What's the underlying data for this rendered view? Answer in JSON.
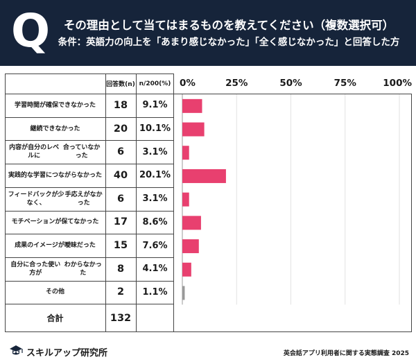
{
  "header": {
    "q_letter": "Q",
    "title": "その理由として当てはまるものを教えてください（複数選択可）",
    "subtitle": "条件：英語力の向上を「あまり感じなかった」「全く感じなかった」と回答した方"
  },
  "table": {
    "col_count": "回答数(n)",
    "col_pct": "n/200(%)",
    "rows": [
      {
        "label": [
          "学習時間が確保できなかった"
        ],
        "count": "18",
        "pct": "9.1%"
      },
      {
        "label": [
          "継続できなかった"
        ],
        "count": "20",
        "pct": "10.1%"
      },
      {
        "label": [
          "内容が自分のレベルに",
          "合っていなかった"
        ],
        "count": "6",
        "pct": "3.1%"
      },
      {
        "label": [
          "実践的な学習に",
          "つながらなかった"
        ],
        "count": "40",
        "pct": "20.1%"
      },
      {
        "label": [
          "フィードバックが少なく、",
          "手応えがなかった"
        ],
        "count": "6",
        "pct": "3.1%"
      },
      {
        "label": [
          "モチベーションが保てなかった"
        ],
        "count": "17",
        "pct": "8.6%"
      },
      {
        "label": [
          "成果のイメージが曖昧だった"
        ],
        "count": "15",
        "pct": "7.6%"
      },
      {
        "label": [
          "自分に合った使い方が",
          "わからなかった"
        ],
        "count": "8",
        "pct": "4.1%"
      },
      {
        "label": [
          "その他"
        ],
        "count": "2",
        "pct": "1.1%"
      }
    ],
    "total_label": "合計",
    "total_count": "132"
  },
  "chart_data": {
    "type": "bar",
    "orientation": "horizontal",
    "categories": [
      "学習時間が確保できなかった",
      "継続できなかった",
      "内容が自分のレベルに合っていなかった",
      "実践的な学習につながらなかった",
      "フィードバックが少なく、手応えがなかった",
      "モチベーションが保てなかった",
      "成果のイメージが曖昧だった",
      "自分に合った使い方がわからなかった",
      "その他"
    ],
    "values": [
      9.1,
      10.1,
      3.1,
      20.1,
      3.1,
      8.6,
      7.6,
      4.1,
      1.1
    ],
    "xlim": [
      0,
      100
    ],
    "ticks": [
      0,
      25,
      50,
      75,
      100
    ],
    "tick_labels": [
      "0%",
      "25%",
      "50%",
      "75%",
      "100%"
    ],
    "bar_color": "#e8406f",
    "other_color": "#999999",
    "grid": true
  },
  "footer": {
    "brand": "スキルアップ研究所",
    "source": "英会話アプリ利用者に関する実態調査 2025"
  }
}
